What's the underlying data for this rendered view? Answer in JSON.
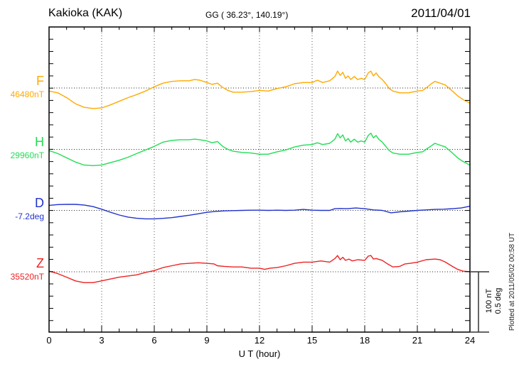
{
  "header": {
    "title": "Kakioka (KAK)",
    "coords": "GG ( 36.23°, 140.19°)",
    "date": "2011/04/01"
  },
  "axis": {
    "xlabel": "U T (hour)",
    "ticks": [
      "0",
      "3",
      "6",
      "9",
      "12",
      "15",
      "18",
      "21",
      "24"
    ]
  },
  "side": {
    "scale_bar_line1": "100 nT",
    "scale_bar_line2": "0.5 deg",
    "plotted_at": "Plotted at 2011/05/02 00:58 UT"
  },
  "chart_data": {
    "type": "line",
    "title": "Kakioka (KAK)",
    "subtitle": "GG ( 36.23°, 140.19°)",
    "date": "2011/04/01",
    "xlabel": "U T (hour)",
    "x_range": [
      0,
      24
    ],
    "x_ticks": [
      0,
      3,
      6,
      9,
      12,
      15,
      18,
      21,
      24
    ],
    "grid": "dotted vertical at 3h intervals, dotted horizontal at each channel baseline",
    "scale": "100 nT and 0.5 deg per scale-bar length",
    "series": [
      {
        "name": "F",
        "unit": "nT",
        "baseline_label": "46480nT",
        "baseline_value": 46480,
        "color": "#ffaa00",
        "points": [
          [
            0,
            -5
          ],
          [
            0.5,
            -8
          ],
          [
            1,
            -16
          ],
          [
            1.5,
            -26
          ],
          [
            2,
            -32
          ],
          [
            2.5,
            -34
          ],
          [
            3,
            -33
          ],
          [
            3.5,
            -28
          ],
          [
            4,
            -22
          ],
          [
            4.5,
            -16
          ],
          [
            5,
            -11
          ],
          [
            5.5,
            -5
          ],
          [
            6,
            2
          ],
          [
            6.5,
            8
          ],
          [
            7,
            11
          ],
          [
            7.5,
            12
          ],
          [
            8,
            12
          ],
          [
            8.3,
            14
          ],
          [
            8.6,
            13
          ],
          [
            9,
            9
          ],
          [
            9.3,
            6
          ],
          [
            9.6,
            8
          ],
          [
            9.9,
            1
          ],
          [
            10.2,
            -4
          ],
          [
            10.5,
            -7
          ],
          [
            11,
            -7
          ],
          [
            11.5,
            -6
          ],
          [
            12,
            -4
          ],
          [
            12.5,
            -5
          ],
          [
            13,
            -1
          ],
          [
            13.5,
            2
          ],
          [
            14,
            7
          ],
          [
            14.5,
            9
          ],
          [
            15,
            9
          ],
          [
            15.3,
            13
          ],
          [
            15.6,
            9
          ],
          [
            16,
            12
          ],
          [
            16.3,
            19
          ],
          [
            16.45,
            28
          ],
          [
            16.6,
            21
          ],
          [
            16.75,
            26
          ],
          [
            16.9,
            16
          ],
          [
            17.05,
            20
          ],
          [
            17.2,
            14
          ],
          [
            17.4,
            19
          ],
          [
            17.6,
            14
          ],
          [
            17.8,
            16
          ],
          [
            18,
            14
          ],
          [
            18.2,
            25
          ],
          [
            18.35,
            28
          ],
          [
            18.5,
            20
          ],
          [
            18.65,
            25
          ],
          [
            18.8,
            19
          ],
          [
            19,
            14
          ],
          [
            19.2,
            7
          ],
          [
            19.4,
            -1
          ],
          [
            19.6,
            -5
          ],
          [
            20,
            -8
          ],
          [
            20.5,
            -8
          ],
          [
            21,
            -5
          ],
          [
            21.3,
            -4
          ],
          [
            21.5,
            0
          ],
          [
            21.8,
            7
          ],
          [
            22,
            11
          ],
          [
            22.3,
            8
          ],
          [
            22.6,
            5
          ],
          [
            23,
            -5
          ],
          [
            23.3,
            -13
          ],
          [
            23.6,
            -19
          ],
          [
            24,
            -25
          ]
        ]
      },
      {
        "name": "H",
        "unit": "nT",
        "baseline_label": "29960nT",
        "baseline_value": 29960,
        "color": "#22dd55",
        "points": [
          [
            0,
            -2
          ],
          [
            0.5,
            -7
          ],
          [
            1,
            -14
          ],
          [
            1.5,
            -21
          ],
          [
            2,
            -26
          ],
          [
            2.5,
            -27
          ],
          [
            3,
            -26
          ],
          [
            3.5,
            -22
          ],
          [
            4,
            -18
          ],
          [
            4.5,
            -13
          ],
          [
            5,
            -7
          ],
          [
            5.5,
            -1
          ],
          [
            6,
            5
          ],
          [
            6.5,
            12
          ],
          [
            7,
            15
          ],
          [
            7.5,
            16
          ],
          [
            8,
            16
          ],
          [
            8.3,
            17
          ],
          [
            8.6,
            16
          ],
          [
            9,
            14
          ],
          [
            9.3,
            11
          ],
          [
            9.6,
            13
          ],
          [
            9.9,
            5
          ],
          [
            10.2,
            0
          ],
          [
            10.5,
            -3
          ],
          [
            11,
            -5
          ],
          [
            11.5,
            -6
          ],
          [
            12,
            -8
          ],
          [
            12.5,
            -8
          ],
          [
            13,
            -4
          ],
          [
            13.5,
            -1
          ],
          [
            14,
            4
          ],
          [
            14.5,
            7
          ],
          [
            15,
            8
          ],
          [
            15.3,
            11
          ],
          [
            15.6,
            8
          ],
          [
            16,
            10
          ],
          [
            16.3,
            17
          ],
          [
            16.45,
            26
          ],
          [
            16.6,
            19
          ],
          [
            16.75,
            24
          ],
          [
            16.9,
            14
          ],
          [
            17.05,
            18
          ],
          [
            17.2,
            12
          ],
          [
            17.4,
            17
          ],
          [
            17.6,
            12
          ],
          [
            17.8,
            14
          ],
          [
            18,
            12
          ],
          [
            18.2,
            23
          ],
          [
            18.35,
            27
          ],
          [
            18.5,
            19
          ],
          [
            18.65,
            23
          ],
          [
            18.8,
            17
          ],
          [
            19,
            12
          ],
          [
            19.2,
            5
          ],
          [
            19.4,
            -2
          ],
          [
            19.6,
            -6
          ],
          [
            20,
            -8
          ],
          [
            20.5,
            -8
          ],
          [
            21,
            -5
          ],
          [
            21.3,
            -4
          ],
          [
            21.5,
            0
          ],
          [
            21.8,
            6
          ],
          [
            22,
            10
          ],
          [
            22.3,
            7
          ],
          [
            22.6,
            4
          ],
          [
            23,
            -6
          ],
          [
            23.3,
            -14
          ],
          [
            23.6,
            -20
          ],
          [
            24,
            -26
          ]
        ]
      },
      {
        "name": "D",
        "unit": "deg",
        "baseline_label": "-7.2deg",
        "baseline_value": -7.2,
        "color": "#2233cc",
        "points": [
          [
            0,
            0.042
          ],
          [
            0.5,
            0.048
          ],
          [
            1,
            0.05
          ],
          [
            1.5,
            0.05
          ],
          [
            2,
            0.045
          ],
          [
            2.5,
            0.032
          ],
          [
            3,
            0.01
          ],
          [
            3.5,
            -0.015
          ],
          [
            4,
            -0.038
          ],
          [
            4.5,
            -0.055
          ],
          [
            5,
            -0.065
          ],
          [
            5.5,
            -0.07
          ],
          [
            6,
            -0.07
          ],
          [
            6.5,
            -0.066
          ],
          [
            7,
            -0.06
          ],
          [
            7.5,
            -0.05
          ],
          [
            8,
            -0.04
          ],
          [
            8.5,
            -0.028
          ],
          [
            9,
            -0.016
          ],
          [
            9.5,
            -0.008
          ],
          [
            10,
            -0.004
          ],
          [
            10.5,
            -0.002
          ],
          [
            11,
            0
          ],
          [
            11.5,
            0.002
          ],
          [
            12,
            0.002
          ],
          [
            12.5,
            0
          ],
          [
            13,
            0.002
          ],
          [
            13.5,
            0
          ],
          [
            14,
            0.002
          ],
          [
            14.5,
            0.008
          ],
          [
            15,
            0.002
          ],
          [
            15.5,
            0
          ],
          [
            16,
            0
          ],
          [
            16.3,
            0.014
          ],
          [
            16.6,
            0.016
          ],
          [
            17,
            0.014
          ],
          [
            17.5,
            0.02
          ],
          [
            18,
            0.014
          ],
          [
            18.5,
            0.004
          ],
          [
            19,
            0
          ],
          [
            19.5,
            -0.02
          ],
          [
            20,
            -0.012
          ],
          [
            20.5,
            -0.006
          ],
          [
            21,
            0
          ],
          [
            21.5,
            0.004
          ],
          [
            22,
            0.008
          ],
          [
            22.5,
            0.01
          ],
          [
            23,
            0.014
          ],
          [
            23.5,
            0.02
          ],
          [
            24,
            0.035
          ]
        ]
      },
      {
        "name": "Z",
        "unit": "nT",
        "baseline_label": "35520nT",
        "baseline_value": 35520,
        "color": "#ee2222",
        "points": [
          [
            0,
            1
          ],
          [
            0.5,
            -3
          ],
          [
            1,
            -9
          ],
          [
            1.5,
            -15
          ],
          [
            2,
            -18
          ],
          [
            2.5,
            -18
          ],
          [
            3,
            -15
          ],
          [
            3.5,
            -12
          ],
          [
            4,
            -9
          ],
          [
            4.5,
            -7
          ],
          [
            5,
            -5
          ],
          [
            5.5,
            -1
          ],
          [
            6,
            2
          ],
          [
            6.5,
            7
          ],
          [
            7,
            10
          ],
          [
            7.5,
            13
          ],
          [
            8,
            14
          ],
          [
            8.5,
            15
          ],
          [
            9,
            14
          ],
          [
            9.4,
            13
          ],
          [
            9.6,
            10
          ],
          [
            10,
            9
          ],
          [
            10.5,
            8
          ],
          [
            11,
            8
          ],
          [
            11.5,
            6
          ],
          [
            12,
            6
          ],
          [
            12.3,
            4
          ],
          [
            12.6,
            6
          ],
          [
            13,
            7
          ],
          [
            13.5,
            10
          ],
          [
            14,
            14
          ],
          [
            14.5,
            16
          ],
          [
            15,
            16
          ],
          [
            15.5,
            18
          ],
          [
            16,
            16
          ],
          [
            16.3,
            22
          ],
          [
            16.45,
            27
          ],
          [
            16.6,
            20
          ],
          [
            16.75,
            24
          ],
          [
            16.9,
            19
          ],
          [
            17.1,
            21
          ],
          [
            17.3,
            18
          ],
          [
            17.6,
            20
          ],
          [
            18,
            19
          ],
          [
            18.2,
            26
          ],
          [
            18.35,
            27
          ],
          [
            18.5,
            21
          ],
          [
            18.65,
            22
          ],
          [
            19,
            19
          ],
          [
            19.3,
            13
          ],
          [
            19.6,
            8
          ],
          [
            20,
            9
          ],
          [
            20.3,
            13
          ],
          [
            20.6,
            14
          ],
          [
            21,
            16
          ],
          [
            21.5,
            20
          ],
          [
            22,
            21
          ],
          [
            22.3,
            20
          ],
          [
            22.6,
            16
          ],
          [
            23,
            9
          ],
          [
            23.3,
            4
          ],
          [
            23.6,
            1
          ],
          [
            24,
            0
          ]
        ]
      }
    ]
  }
}
